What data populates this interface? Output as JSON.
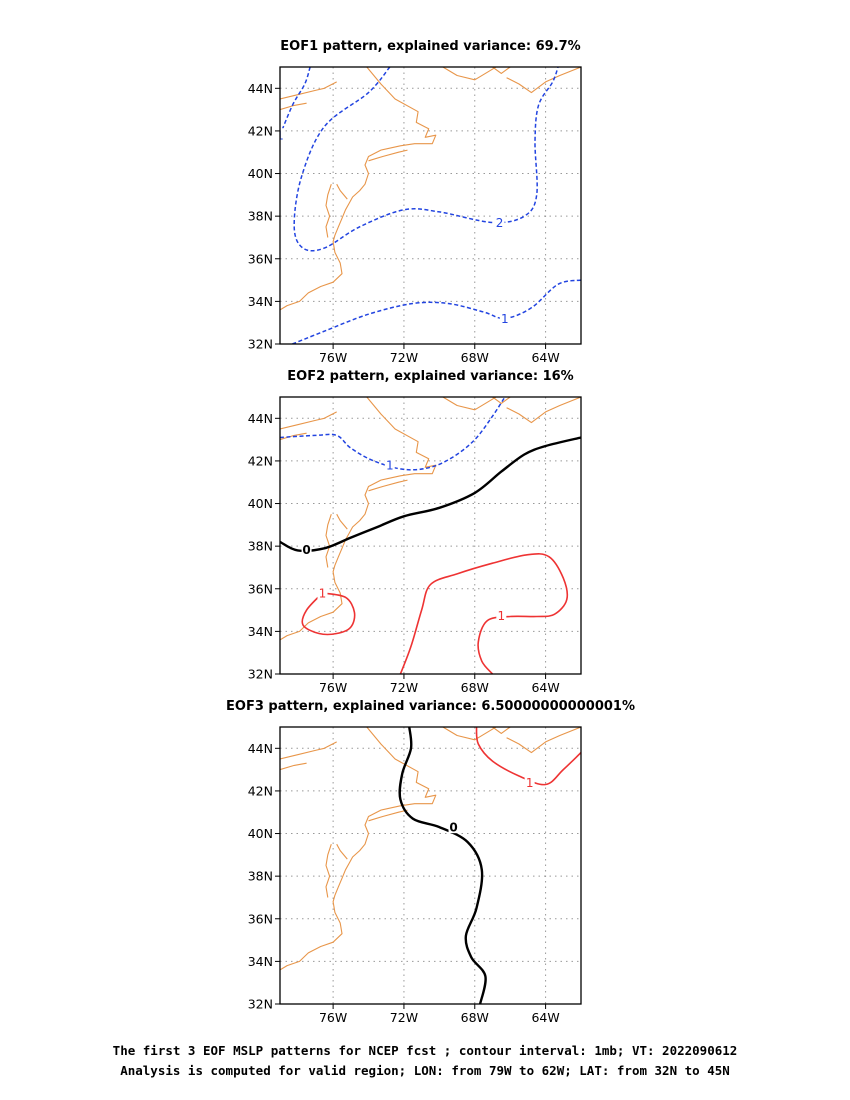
{
  "figure": {
    "caption_line_1": "The first 3 EOF MSLP patterns for NCEP fcst ; contour interval: 1mb; VT: 2022090612",
    "caption_line_2": "Analysis is computed for valid region; LON: from 79W to 62W; LAT: from 32N to 45N"
  },
  "colors": {
    "coastline": "#e8964a",
    "negative_contour": "#2244e0",
    "zero_contour": "#000000",
    "positive_contour": "#ee3333",
    "grid": "#999999"
  },
  "chart_data": [
    {
      "type": "contour-map",
      "title": "EOF1 pattern, explained variance: 69.7%",
      "lon_range": [
        -79,
        -62
      ],
      "lat_range": [
        32,
        45
      ],
      "x_ticks": [
        "76W",
        "72W",
        "68W",
        "64W"
      ],
      "y_ticks": [
        "32N",
        "34N",
        "36N",
        "38N",
        "40N",
        "42N",
        "44N"
      ],
      "grid": true,
      "contours": [
        {
          "level": -1,
          "style": "dashed",
          "color": "negative",
          "points": [
            [
              -77.3,
              45
            ],
            [
              -77.6,
              44.2
            ],
            [
              -78.3,
              43.2
            ],
            [
              -79,
              41.8
            ]
          ],
          "labels": [
            [
              -79,
              41.8
            ]
          ]
        },
        {
          "level": -2,
          "style": "dashed",
          "color": "negative",
          "points": [
            [
              -72.8,
              45
            ],
            [
              -74,
              43.8
            ],
            [
              -76.5,
              42.2
            ],
            [
              -77.8,
              39.8
            ],
            [
              -78.2,
              37.5
            ],
            [
              -77.7,
              36.5
            ],
            [
              -76.5,
              36.5
            ],
            [
              -74.5,
              37.5
            ],
            [
              -72,
              38.3
            ],
            [
              -70,
              38.2
            ],
            [
              -67,
              37.7
            ],
            [
              -65.2,
              38
            ],
            [
              -64.5,
              39
            ],
            [
              -64.6,
              41.5
            ],
            [
              -64.4,
              43.2
            ],
            [
              -63.6,
              44.3
            ],
            [
              -63.3,
              45
            ]
          ],
          "labels": [
            [
              -66.6,
              37.7
            ]
          ]
        },
        {
          "level": -1,
          "style": "dashed",
          "color": "negative",
          "points": [
            [
              -78.3,
              32
            ],
            [
              -76.5,
              32.6
            ],
            [
              -74,
              33.4
            ],
            [
              -71.5,
              33.9
            ],
            [
              -69.5,
              33.9
            ],
            [
              -67.5,
              33.5
            ],
            [
              -66.3,
              33.2
            ],
            [
              -64.8,
              33.7
            ],
            [
              -63.3,
              34.8
            ],
            [
              -62,
              35
            ]
          ],
          "labels": [
            [
              -66.3,
              33.2
            ]
          ]
        }
      ]
    },
    {
      "type": "contour-map",
      "title": "EOF2 pattern, explained variance: 16%",
      "lon_range": [
        -79,
        -62
      ],
      "lat_range": [
        32,
        45
      ],
      "x_ticks": [
        "76W",
        "72W",
        "68W",
        "64W"
      ],
      "y_ticks": [
        "32N",
        "34N",
        "36N",
        "38N",
        "40N",
        "42N",
        "44N"
      ],
      "grid": true,
      "contours": [
        {
          "level": -1,
          "style": "dashed",
          "color": "negative",
          "points": [
            [
              -79,
              43.1
            ],
            [
              -77,
              43.2
            ],
            [
              -75.8,
              43.2
            ],
            [
              -75,
              42.6
            ],
            [
              -73.7,
              42
            ],
            [
              -72,
              41.6
            ],
            [
              -70.5,
              41.7
            ],
            [
              -69.2,
              42.2
            ],
            [
              -68,
              43
            ],
            [
              -67,
              44.1
            ],
            [
              -66.3,
              45
            ]
          ],
          "labels": [
            [
              -72.8,
              41.8
            ]
          ]
        },
        {
          "level": 0,
          "style": "solid",
          "color": "zero",
          "points": [
            [
              -79,
              38.2
            ],
            [
              -78,
              37.8
            ],
            [
              -76.5,
              37.9
            ],
            [
              -75,
              38.4
            ],
            [
              -73.5,
              38.9
            ],
            [
              -72,
              39.4
            ],
            [
              -70,
              39.8
            ],
            [
              -68,
              40.5
            ],
            [
              -66.5,
              41.5
            ],
            [
              -65.2,
              42.3
            ],
            [
              -64,
              42.7
            ],
            [
              -62,
              43.1
            ]
          ],
          "labels": [
            [
              -77.5,
              37.85
            ]
          ]
        },
        {
          "level": 1,
          "style": "solid",
          "color": "positive",
          "points": [
            [
              -76.6,
              35.8
            ],
            [
              -77.5,
              35
            ],
            [
              -77.7,
              34.3
            ],
            [
              -76.8,
              33.9
            ],
            [
              -75.8,
              33.9
            ],
            [
              -75,
              34.2
            ],
            [
              -74.8,
              34.9
            ],
            [
              -75.3,
              35.6
            ],
            [
              -76.6,
              35.8
            ]
          ],
          "labels": [
            [
              -76.6,
              35.8
            ]
          ]
        },
        {
          "level": 1,
          "style": "solid",
          "color": "positive",
          "points": [
            [
              -72.2,
              32
            ],
            [
              -71.6,
              33.3
            ],
            [
              -71,
              35
            ],
            [
              -70.5,
              36.2
            ],
            [
              -69,
              36.7
            ],
            [
              -67,
              37.2
            ],
            [
              -65,
              37.6
            ],
            [
              -63.8,
              37.5
            ],
            [
              -63,
              36.5
            ],
            [
              -62.8,
              35.5
            ],
            [
              -63.5,
              34.8
            ],
            [
              -64.5,
              34.7
            ],
            [
              -66,
              34.7
            ],
            [
              -67.3,
              34.5
            ],
            [
              -67.8,
              33.5
            ],
            [
              -67.6,
              32.6
            ],
            [
              -67,
              32
            ]
          ],
          "labels": [
            [
              -66.5,
              34.75
            ]
          ]
        }
      ]
    },
    {
      "type": "contour-map",
      "title": "EOF3 pattern, explained variance: 6.50000000000001%",
      "lon_range": [
        -79,
        -62
      ],
      "lat_range": [
        32,
        45
      ],
      "x_ticks": [
        "76W",
        "72W",
        "68W",
        "64W"
      ],
      "y_ticks": [
        "32N",
        "34N",
        "36N",
        "38N",
        "40N",
        "42N",
        "44N"
      ],
      "grid": true,
      "contours": [
        {
          "level": 0,
          "style": "solid",
          "color": "zero",
          "points": [
            [
              -71.7,
              45
            ],
            [
              -71.6,
              44
            ],
            [
              -72.1,
              42.8
            ],
            [
              -72.2,
              41.6
            ],
            [
              -71.5,
              40.7
            ],
            [
              -70,
              40.3
            ],
            [
              -68.4,
              39.6
            ],
            [
              -67.6,
              38.3
            ],
            [
              -67.9,
              36.5
            ],
            [
              -68.5,
              35.2
            ],
            [
              -68.2,
              34.2
            ],
            [
              -67.4,
              33.3
            ],
            [
              -67.7,
              32
            ]
          ],
          "labels": [
            [
              -69.2,
              40.3
            ]
          ]
        },
        {
          "level": 1,
          "style": "solid",
          "color": "positive",
          "points": [
            [
              -67.9,
              45
            ],
            [
              -67.8,
              44.2
            ],
            [
              -67,
              43.4
            ],
            [
              -65.5,
              42.7
            ],
            [
              -64,
              42.3
            ],
            [
              -63,
              43
            ],
            [
              -62,
              43.8
            ]
          ],
          "labels": [
            [
              -64.9,
              42.4
            ]
          ]
        }
      ]
    }
  ]
}
